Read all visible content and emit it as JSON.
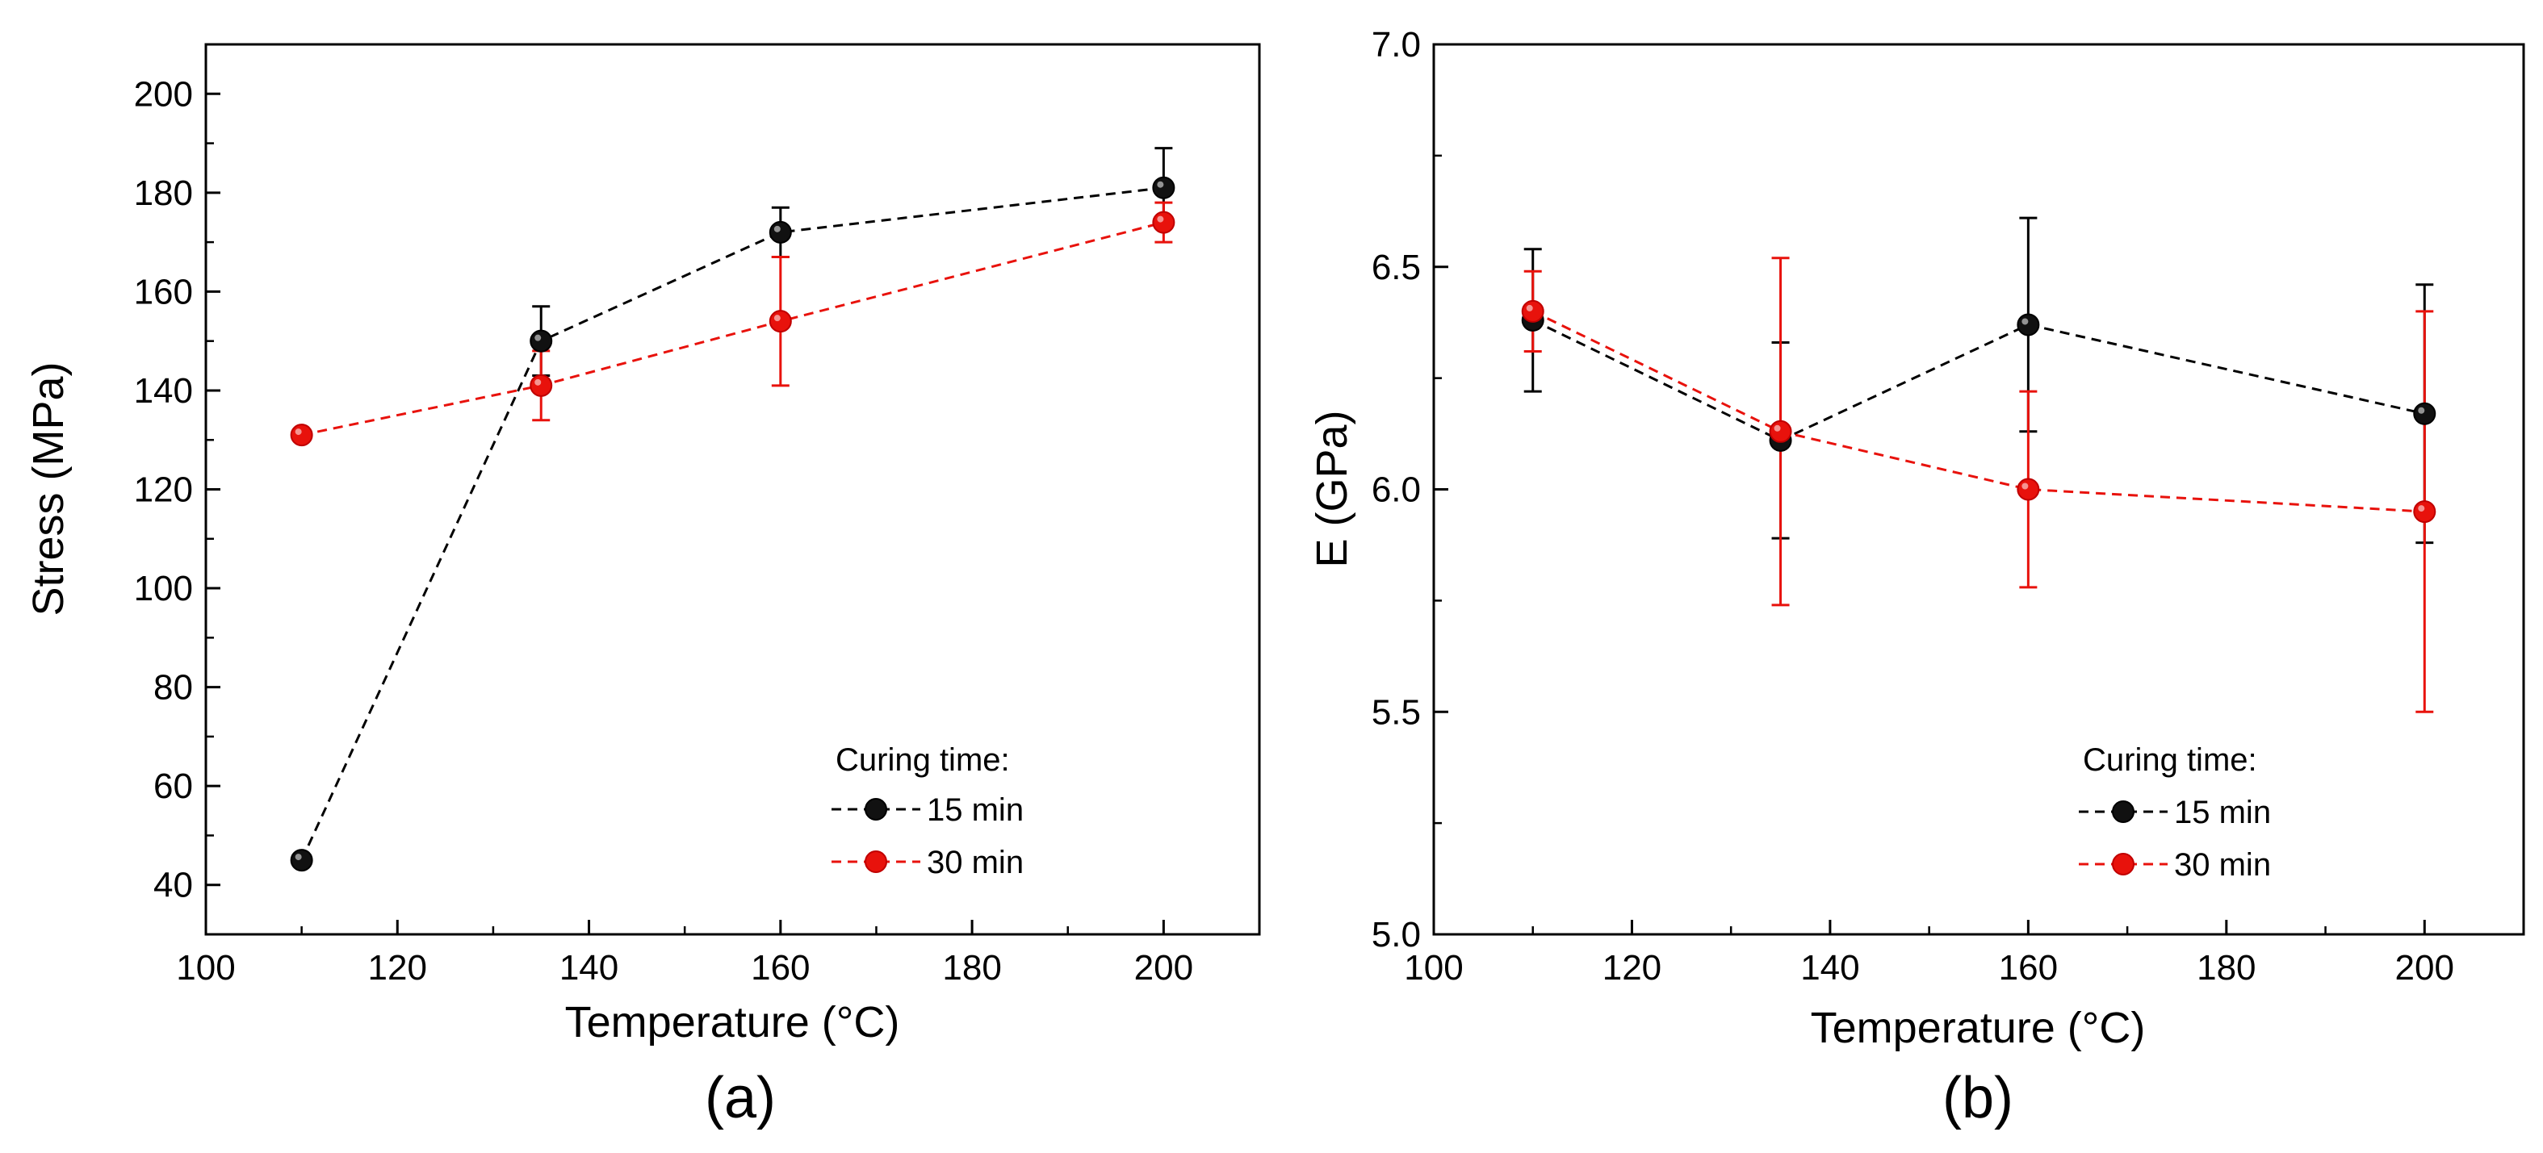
{
  "chart_data": [
    {
      "type": "scatter",
      "panel_label": "(a)",
      "xlabel": "Temperature (°C)",
      "ylabel": "Stress (MPa)",
      "xlim": [
        100,
        210
      ],
      "ylim": [
        30,
        210
      ],
      "x_ticks": [
        "100",
        "120",
        "140",
        "160",
        "180",
        "200"
      ],
      "y_ticks": [
        "40",
        "60",
        "80",
        "100",
        "120",
        "140",
        "160",
        "180",
        "200"
      ],
      "legend": {
        "title": "Curing time:",
        "placement": "lower-right"
      },
      "series": [
        {
          "name": "15 min",
          "color": "#000000",
          "x": [
            110,
            135,
            160,
            200
          ],
          "y": [
            45,
            150,
            172,
            181
          ],
          "err": [
            0,
            7,
            5,
            8
          ]
        },
        {
          "name": "30 min",
          "color": "#e8120c",
          "x": [
            110,
            135,
            160,
            200
          ],
          "y": [
            131,
            141,
            154,
            174
          ],
          "err": [
            0,
            7,
            13,
            4
          ]
        }
      ]
    },
    {
      "type": "scatter",
      "panel_label": "(b)",
      "xlabel": "Temperature (°C)",
      "ylabel": "E (GPa)",
      "xlim": [
        100,
        210
      ],
      "ylim": [
        5.0,
        7.0
      ],
      "x_ticks": [
        "100",
        "120",
        "140",
        "160",
        "180",
        "200"
      ],
      "y_ticks": [
        "5.0",
        "5.5",
        "6.0",
        "6.5",
        "7.0"
      ],
      "legend": {
        "title": "Curing time:",
        "placement": "lower-right"
      },
      "series": [
        {
          "name": "15 min",
          "color": "#000000",
          "x": [
            110,
            135,
            160,
            200
          ],
          "y": [
            6.38,
            6.11,
            6.37,
            6.17
          ],
          "err": [
            0.16,
            0.22,
            0.24,
            0.29
          ]
        },
        {
          "name": "30 min",
          "color": "#e8120c",
          "x": [
            110,
            135,
            160,
            200
          ],
          "y": [
            6.4,
            6.13,
            6.0,
            5.95
          ],
          "err": [
            0.09,
            0.39,
            0.22,
            0.45
          ]
        }
      ]
    }
  ]
}
